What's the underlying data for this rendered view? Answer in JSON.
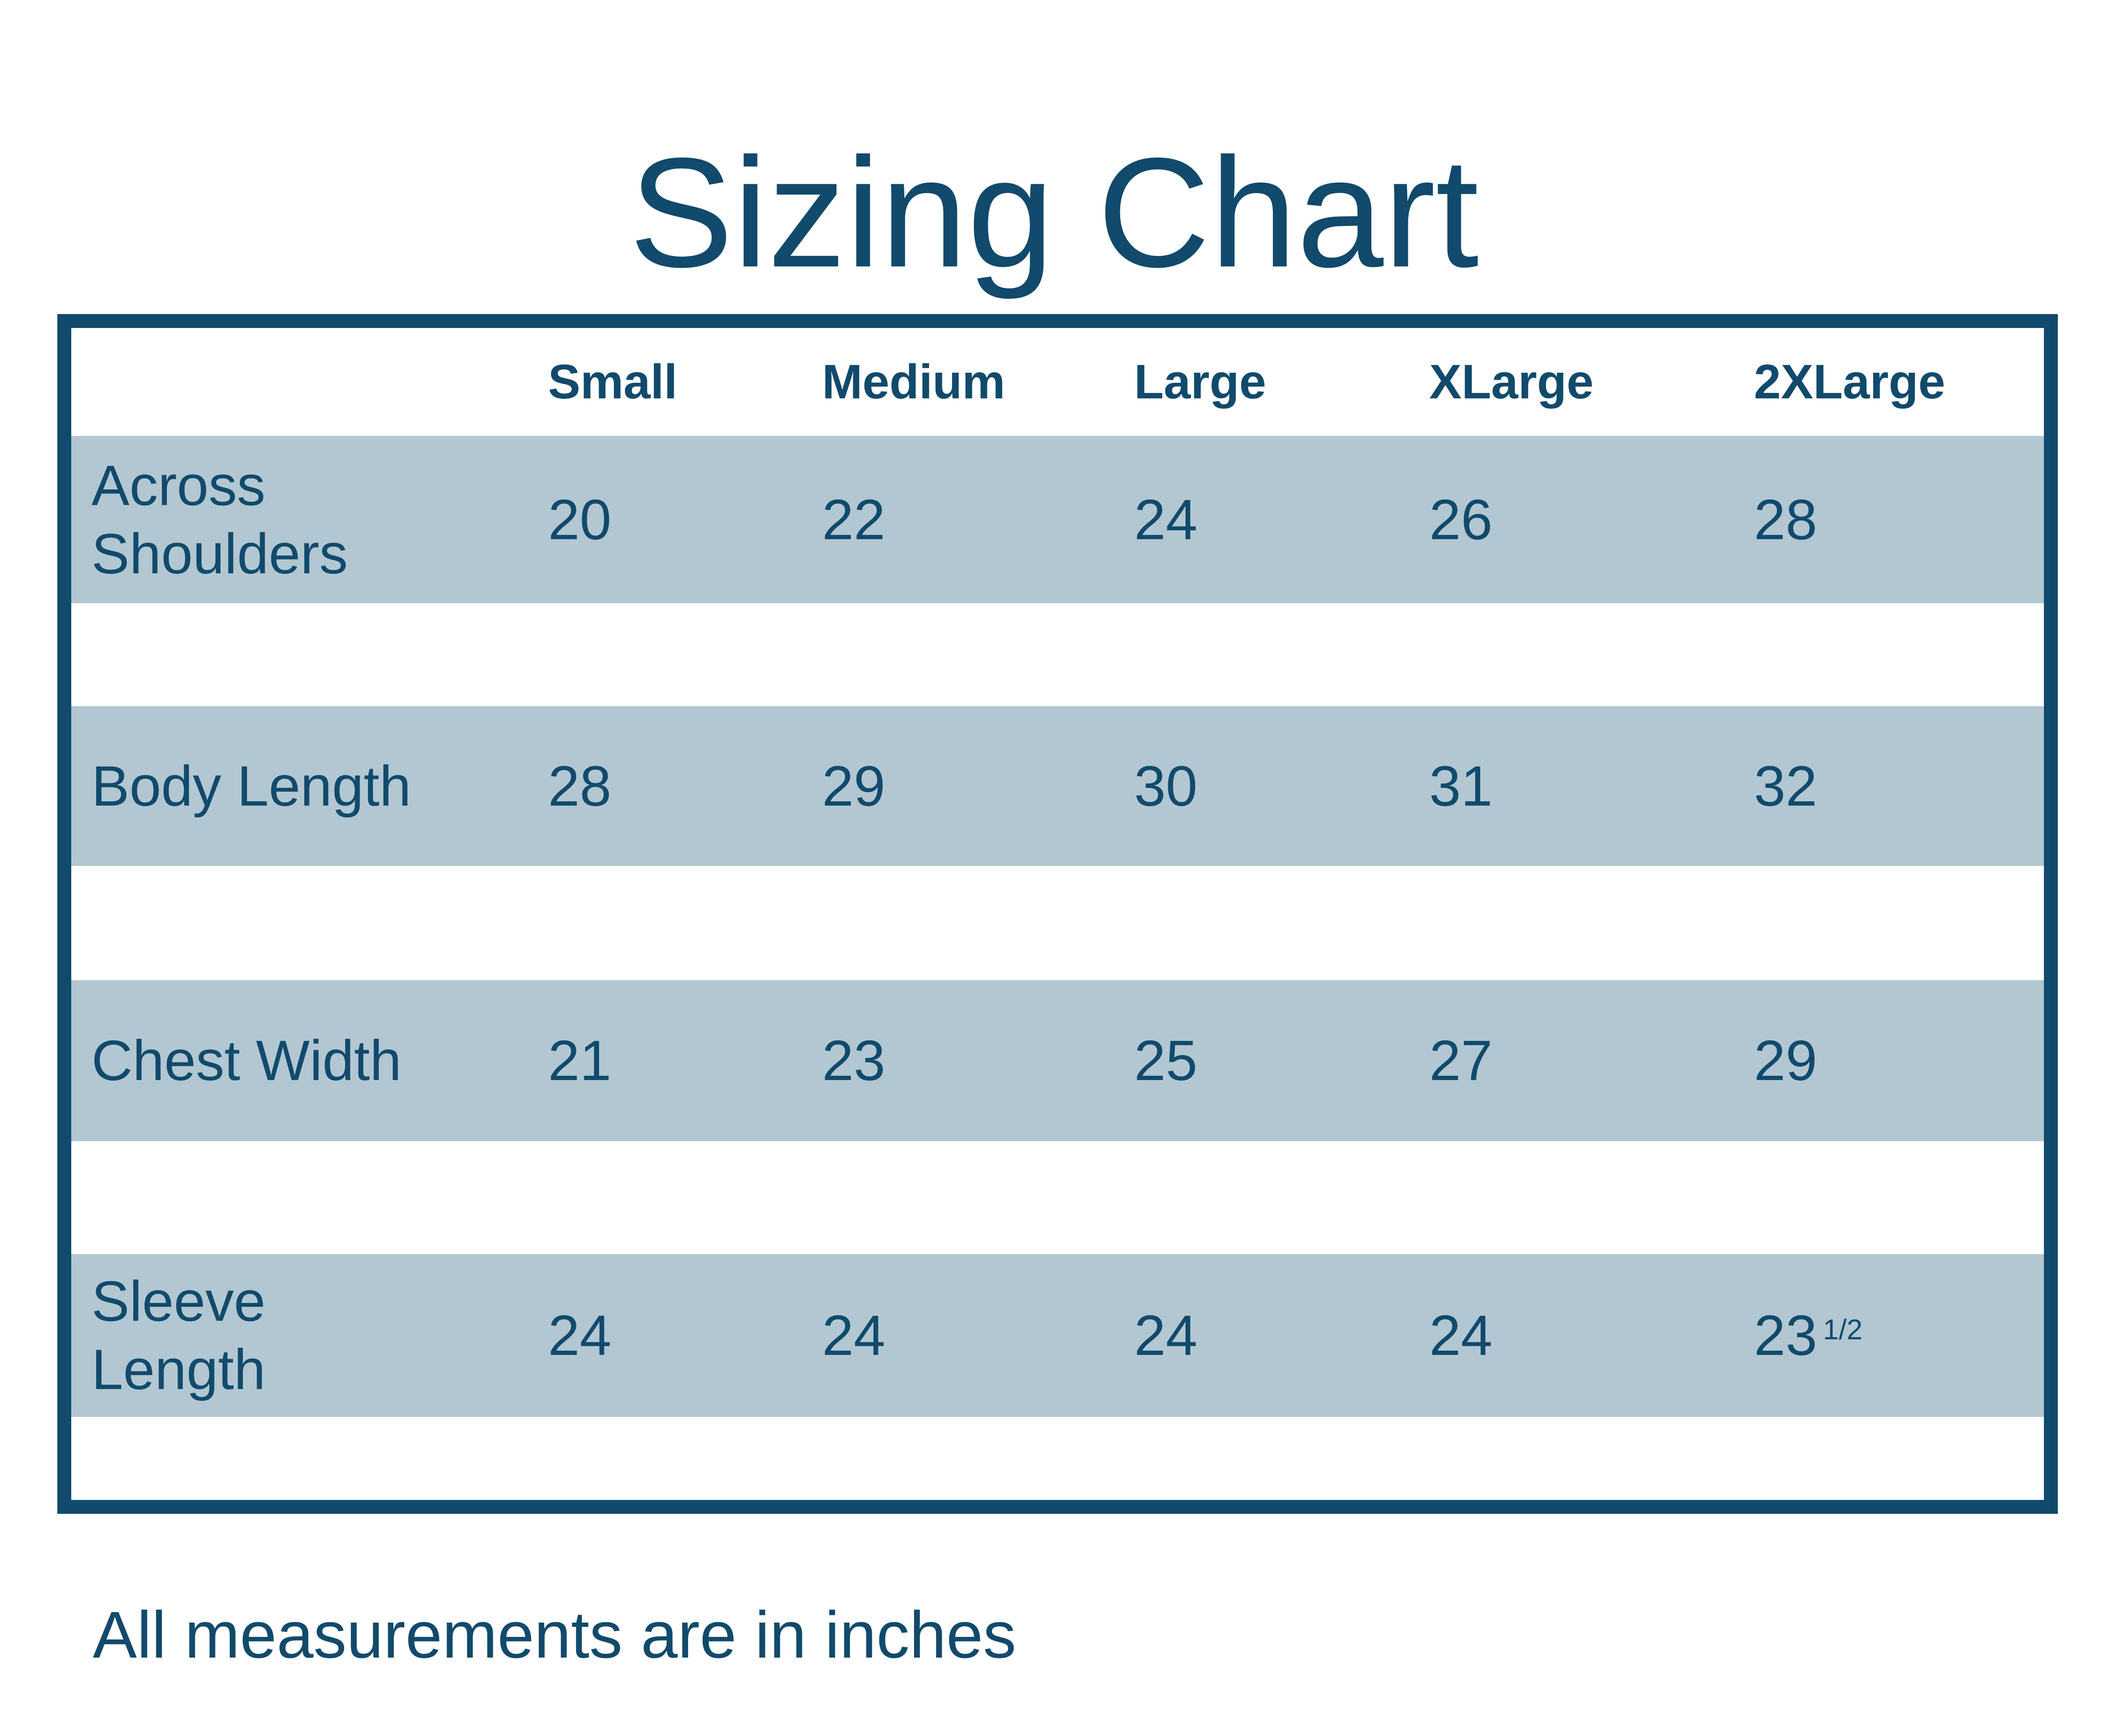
{
  "title": {
    "text": "Sizing Chart"
  },
  "table": {
    "columns": [
      "Small",
      "Medium",
      "Large",
      "XLarge",
      "2XLarge"
    ],
    "rows": [
      {
        "label": "Across Shoulders",
        "values": [
          "20",
          "22",
          "24",
          "26",
          "28"
        ]
      },
      {
        "label": "Body Length",
        "values": [
          "28",
          "29",
          "30",
          "31",
          "32"
        ]
      },
      {
        "label": "Chest Width",
        "values": [
          "21",
          "23",
          "25",
          "27",
          "29"
        ]
      },
      {
        "label": "Sleeve Length",
        "values": [
          "24",
          "24",
          "24",
          "24",
          "23"
        ],
        "fraction": "1/2"
      }
    ]
  },
  "footer": {
    "text": "All measurements are in inches"
  },
  "colors": {
    "navy": "#114A6C",
    "row_band": "#B2C7D2",
    "background": "#FFFFFF"
  }
}
